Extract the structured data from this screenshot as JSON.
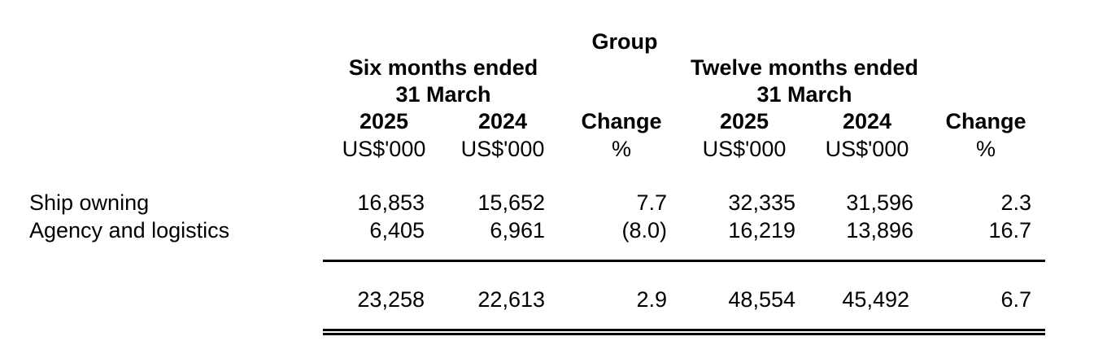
{
  "header": {
    "group": "Group",
    "six_months": {
      "line1": "Six months ended",
      "line2": "31 March"
    },
    "twelve_months": {
      "line1": "Twelve months ended",
      "line2": "31 March"
    }
  },
  "columns": [
    {
      "label": "2025",
      "unit": "US$'000"
    },
    {
      "label": "2024",
      "unit": "US$'000"
    },
    {
      "label": "Change",
      "unit": "%"
    },
    {
      "label": "2025",
      "unit": "US$'000"
    },
    {
      "label": "2024",
      "unit": "US$'000"
    },
    {
      "label": "Change",
      "unit": "%"
    }
  ],
  "rows": [
    {
      "label": "Ship owning",
      "values": [
        "16,853",
        "15,652",
        "7.7",
        "32,335",
        "31,596",
        "2.3"
      ]
    },
    {
      "label": "Agency and logistics",
      "values": [
        "6,405",
        "6,961",
        "(8.0)",
        "16,219",
        "13,896",
        "16.7"
      ]
    }
  ],
  "total": {
    "values": [
      "23,258",
      "22,613",
      "2.9",
      "48,554",
      "45,492",
      "6.7"
    ]
  }
}
